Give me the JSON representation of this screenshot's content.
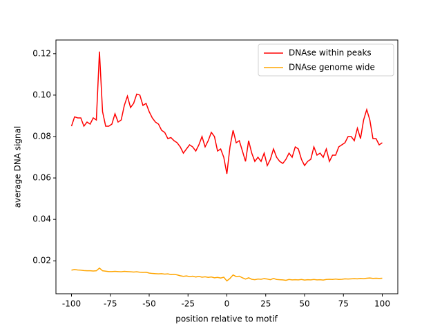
{
  "chart_data": {
    "type": "line",
    "xlabel": "position relative to motif",
    "ylabel": "average DNA signal",
    "x": [
      -100,
      -98,
      -96,
      -94,
      -92,
      -90,
      -88,
      -86,
      -84,
      -82,
      -80,
      -78,
      -76,
      -74,
      -72,
      -70,
      -68,
      -66,
      -64,
      -62,
      -60,
      -58,
      -56,
      -54,
      -52,
      -50,
      -48,
      -46,
      -44,
      -42,
      -40,
      -38,
      -36,
      -34,
      -32,
      -30,
      -28,
      -26,
      -24,
      -22,
      -20,
      -18,
      -16,
      -14,
      -12,
      -10,
      -8,
      -6,
      -4,
      -2,
      0,
      2,
      4,
      6,
      8,
      10,
      12,
      14,
      16,
      18,
      20,
      22,
      24,
      26,
      28,
      30,
      32,
      34,
      36,
      38,
      40,
      42,
      44,
      46,
      48,
      50,
      52,
      54,
      56,
      58,
      60,
      62,
      64,
      66,
      68,
      70,
      72,
      74,
      76,
      78,
      80,
      82,
      84,
      86,
      88,
      90,
      92,
      94,
      96,
      98,
      100
    ],
    "series": [
      {
        "name": "DNAse within peaks",
        "color": "red",
        "values": [
          0.085,
          0.0895,
          0.089,
          0.089,
          0.085,
          0.087,
          0.086,
          0.089,
          0.088,
          0.121,
          0.092,
          0.085,
          0.085,
          0.086,
          0.091,
          0.087,
          0.088,
          0.095,
          0.0995,
          0.094,
          0.096,
          0.1005,
          0.1,
          0.095,
          0.096,
          0.092,
          0.089,
          0.087,
          0.086,
          0.083,
          0.082,
          0.079,
          0.0795,
          0.078,
          0.077,
          0.075,
          0.072,
          0.074,
          0.076,
          0.075,
          0.073,
          0.076,
          0.08,
          0.075,
          0.078,
          0.082,
          0.08,
          0.073,
          0.074,
          0.07,
          0.062,
          0.075,
          0.083,
          0.077,
          0.078,
          0.073,
          0.068,
          0.078,
          0.072,
          0.068,
          0.07,
          0.068,
          0.072,
          0.066,
          0.069,
          0.074,
          0.07,
          0.068,
          0.067,
          0.069,
          0.072,
          0.07,
          0.075,
          0.074,
          0.069,
          0.066,
          0.068,
          0.069,
          0.075,
          0.071,
          0.072,
          0.07,
          0.074,
          0.068,
          0.071,
          0.071,
          0.075,
          0.076,
          0.077,
          0.08,
          0.08,
          0.078,
          0.084,
          0.079,
          0.088,
          0.093,
          0.088,
          0.079,
          0.079,
          0.076,
          0.077
        ]
      },
      {
        "name": "DNAse genome wide",
        "color": "orange",
        "values": [
          0.0155,
          0.0158,
          0.0156,
          0.0155,
          0.0153,
          0.0152,
          0.0152,
          0.0151,
          0.0152,
          0.0165,
          0.0152,
          0.015,
          0.0148,
          0.0148,
          0.0149,
          0.0148,
          0.0147,
          0.0149,
          0.0148,
          0.0147,
          0.0146,
          0.0147,
          0.0145,
          0.0144,
          0.0145,
          0.0141,
          0.0139,
          0.0138,
          0.0137,
          0.0138,
          0.0136,
          0.0137,
          0.0134,
          0.0135,
          0.0132,
          0.0128,
          0.0125,
          0.0127,
          0.0124,
          0.0126,
          0.0122,
          0.0125,
          0.0121,
          0.0123,
          0.012,
          0.0122,
          0.0118,
          0.012,
          0.0117,
          0.0121,
          0.0103,
          0.0115,
          0.0132,
          0.0124,
          0.0126,
          0.0118,
          0.0112,
          0.0118,
          0.0111,
          0.0109,
          0.0112,
          0.0111,
          0.0114,
          0.0112,
          0.0109,
          0.0115,
          0.011,
          0.0109,
          0.0108,
          0.0106,
          0.011,
          0.0108,
          0.0109,
          0.0108,
          0.011,
          0.0107,
          0.0109,
          0.0108,
          0.011,
          0.0108,
          0.0109,
          0.0107,
          0.011,
          0.0111,
          0.011,
          0.0112,
          0.011,
          0.0111,
          0.0113,
          0.0112,
          0.0113,
          0.0114,
          0.0113,
          0.0115,
          0.0114,
          0.0116,
          0.0117,
          0.0115,
          0.0116,
          0.0115,
          0.0116
        ]
      }
    ],
    "xlim": [
      -110,
      110
    ],
    "ylim": [
      0.0041,
      0.1266
    ],
    "xticks": [
      -100,
      -75,
      -50,
      -25,
      0,
      25,
      50,
      75,
      100
    ],
    "yticks": [
      0.02,
      0.04,
      0.06,
      0.08,
      {
        "value": 0.1,
        "label": "0.10"
      },
      0.12
    ],
    "legend": "upper right"
  }
}
